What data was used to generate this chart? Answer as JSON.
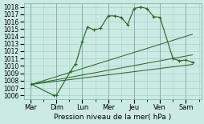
{
  "background_color": "#cceae4",
  "grid_color": "#aacfca",
  "line_color": "#2d6a2d",
  "xlabel_text": "Pression niveau de la mer( hPa )",
  "ylim": [
    1005.5,
    1018.5
  ],
  "yticks": [
    1006,
    1007,
    1008,
    1009,
    1010,
    1011,
    1012,
    1013,
    1014,
    1015,
    1016,
    1017,
    1018
  ],
  "x_labels": [
    "Mar",
    "Dim",
    "Lun",
    "Mer",
    "Jeu",
    "Ven",
    "Sam"
  ],
  "x_positions": [
    0,
    1,
    2,
    3,
    4,
    5,
    6
  ],
  "series_main": {
    "x": [
      0.05,
      0.9,
      1.0,
      1.55,
      1.75,
      2.0,
      2.2,
      2.45,
      2.7,
      3.0,
      3.25,
      3.5,
      3.75,
      4.0,
      4.25,
      4.5,
      4.75,
      5.0,
      5.5,
      5.75,
      6.0,
      6.25
    ],
    "y": [
      1007.5,
      1006.0,
      1006.0,
      1009.3,
      1010.3,
      1013.3,
      1015.3,
      1014.9,
      1015.1,
      1016.8,
      1016.8,
      1016.6,
      1015.6,
      1017.8,
      1018.0,
      1017.8,
      1016.7,
      1016.6,
      1011.0,
      1010.7,
      1010.8,
      1010.5
    ]
  },
  "series_smooth": [
    {
      "x": [
        0.05,
        6.25
      ],
      "y": [
        1007.5,
        1014.3
      ]
    },
    {
      "x": [
        0.05,
        6.25
      ],
      "y": [
        1007.5,
        1011.5
      ]
    },
    {
      "x": [
        0.05,
        6.25
      ],
      "y": [
        1007.5,
        1010.2
      ]
    }
  ]
}
